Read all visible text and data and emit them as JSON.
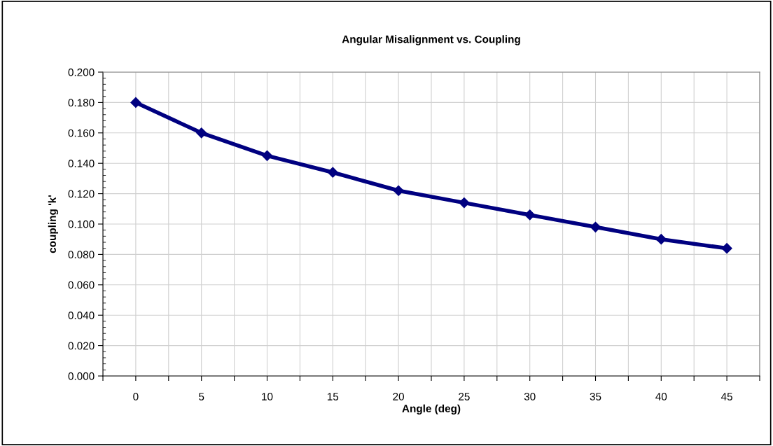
{
  "chart_data": {
    "type": "line",
    "title": "Angular Misalignment vs. Coupling",
    "xlabel": "Angle (deg)",
    "ylabel": "coupling 'k'",
    "x": [
      0,
      5,
      10,
      15,
      20,
      25,
      30,
      35,
      40,
      45
    ],
    "series": [
      {
        "color": "#000080",
        "values": [
          0.18,
          0.16,
          0.145,
          0.134,
          0.122,
          0.114,
          0.106,
          0.098,
          0.09,
          0.084
        ]
      }
    ],
    "xlim": [
      -2.5,
      47.5
    ],
    "xticks": [
      {
        "value": -2.5,
        "label": null
      },
      0,
      {
        "value": 2.5,
        "label": null
      },
      5,
      {
        "value": 7.5,
        "label": null
      },
      10,
      {
        "value": 12.5,
        "label": null
      },
      15,
      {
        "value": 17.5,
        "label": null
      },
      20,
      {
        "value": 22.5,
        "label": null
      },
      25,
      {
        "value": 27.5,
        "label": null
      },
      30,
      {
        "value": 32.5,
        "label": null
      },
      35,
      {
        "value": 37.5,
        "label": null
      },
      40,
      {
        "value": 42.5,
        "label": null
      },
      45,
      {
        "value": 47.5,
        "label": null
      }
    ],
    "ylim": [
      0,
      0.2
    ],
    "yticks": [
      {
        "value": 0,
        "label": "0.000"
      },
      {
        "value": 0.02,
        "label": "0.020"
      },
      {
        "value": 0.04,
        "label": "0.040"
      },
      {
        "value": 0.06,
        "label": "0.060"
      },
      {
        "value": 0.08,
        "label": "0.080"
      },
      {
        "value": 0.1,
        "label": "0.100"
      },
      {
        "value": 0.12,
        "label": "0.120"
      },
      {
        "value": 0.14,
        "label": "0.140"
      },
      {
        "value": 0.16,
        "label": "0.160"
      },
      {
        "value": 0.18,
        "label": "0.180"
      },
      {
        "value": 0.2,
        "label": "0.200"
      }
    ],
    "grid": true,
    "marker": "diamond",
    "line_style": "solid",
    "legend": false
  }
}
